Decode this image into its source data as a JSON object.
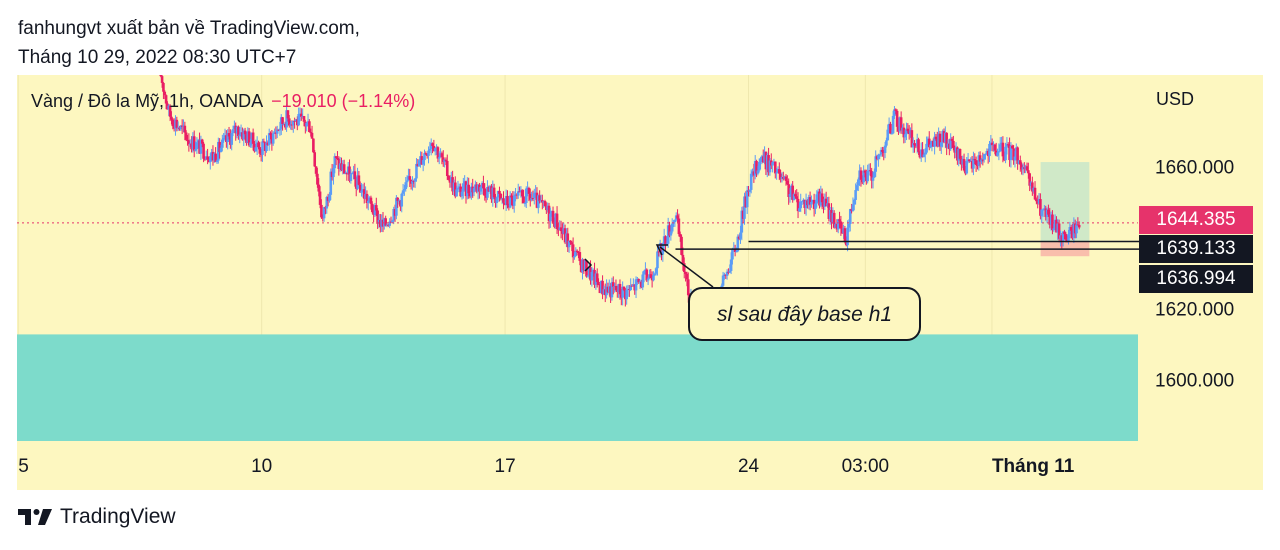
{
  "header": {
    "line1": "fanhungvt xuất bản về TradingView.com,",
    "line2": "Tháng 10 29, 2022 08:30 UTC+7"
  },
  "legend": {
    "symbol": "Vàng / Đô la Mỹ, 1h, OANDA",
    "change": "−19.010 (−1.14%)"
  },
  "currency_label": "USD",
  "price_badges": {
    "last": "1644.385",
    "level_a": "1639.133",
    "level_b": "1636.994"
  },
  "annotation": {
    "text": "sl sau  đây base h1"
  },
  "footer": {
    "brand": "TradingView"
  },
  "colors": {
    "chart_bg": "#fdf7c0",
    "up_candle": "#5b9cf6",
    "down_candle": "#e91e63",
    "demand_zone": "#7ddbcb",
    "tp_zone": "#c8e6c9",
    "sl_zone": "#f8b4a8",
    "last_price": "#e6336b"
  },
  "chart_data": {
    "type": "candlestick",
    "symbol": "XAU/USD",
    "timeframe": "1h",
    "y_axis": {
      "unit": "USD",
      "ticks": [
        1660,
        1620,
        1600
      ],
      "tick_labels": [
        "1660.000",
        "1620.000",
        "1600.000"
      ],
      "ylim": [
        1583,
        1686
      ]
    },
    "x_axis": {
      "ticks": [
        {
          "label": "5",
          "x": 4.0
        },
        {
          "label": "10",
          "x": 14.0
        },
        {
          "label": "17",
          "x": 24.0
        },
        {
          "label": "24",
          "x": 34.0
        },
        {
          "label": "03:00",
          "x": 38.8
        },
        {
          "label": "Tháng 11",
          "x": 44.0
        }
      ],
      "xlim": [
        3.95,
        50.0
      ]
    },
    "price_path_hourly_close_anchors": [
      [
        9.8,
        1688
      ],
      [
        10.2,
        1675
      ],
      [
        11.0,
        1668
      ],
      [
        12.0,
        1663
      ],
      [
        13.0,
        1671
      ],
      [
        14.0,
        1665
      ],
      [
        15.0,
        1674
      ],
      [
        16.0,
        1672
      ],
      [
        16.5,
        1645
      ],
      [
        17.0,
        1662
      ],
      [
        18.0,
        1655
      ],
      [
        19.0,
        1643
      ],
      [
        20.0,
        1655
      ],
      [
        21.0,
        1668
      ],
      [
        22.0,
        1653
      ],
      [
        23.0,
        1655
      ],
      [
        24.0,
        1650
      ],
      [
        25.0,
        1652
      ],
      [
        26.0,
        1646
      ],
      [
        27.0,
        1634
      ],
      [
        28.0,
        1626
      ],
      [
        29.0,
        1625
      ],
      [
        30.0,
        1630
      ],
      [
        31.0,
        1647
      ],
      [
        31.5,
        1625
      ],
      [
        32.5,
        1619
      ],
      [
        33.5,
        1638
      ],
      [
        34.0,
        1655
      ],
      [
        34.5,
        1663
      ],
      [
        35.0,
        1660
      ],
      [
        36.0,
        1650
      ],
      [
        37.0,
        1651
      ],
      [
        38.0,
        1640
      ],
      [
        38.5,
        1659
      ],
      [
        39.0,
        1657
      ],
      [
        40.0,
        1674
      ],
      [
        41.0,
        1665
      ],
      [
        42.0,
        1668
      ],
      [
        43.0,
        1660
      ],
      [
        44.0,
        1665
      ],
      [
        45.0,
        1664
      ],
      [
        46.0,
        1648
      ],
      [
        47.0,
        1640
      ],
      [
        47.6,
        1644.385
      ]
    ],
    "last_price": 1644.385,
    "change": -19.01,
    "change_percent": -1.14,
    "horizontal_levels": [
      1639.133,
      1636.994
    ],
    "zones": [
      {
        "name": "demand",
        "from": 1583,
        "to": 1613,
        "x_from": 3.95,
        "x_to": 50.0
      },
      {
        "name": "take-profit",
        "from": 1639.133,
        "to": 1661.5,
        "x_from": 46.0,
        "x_to": 48.0
      },
      {
        "name": "stop-loss",
        "from": 1635.0,
        "to": 1639.133,
        "x_from": 46.0,
        "x_to": 48.0
      }
    ]
  }
}
